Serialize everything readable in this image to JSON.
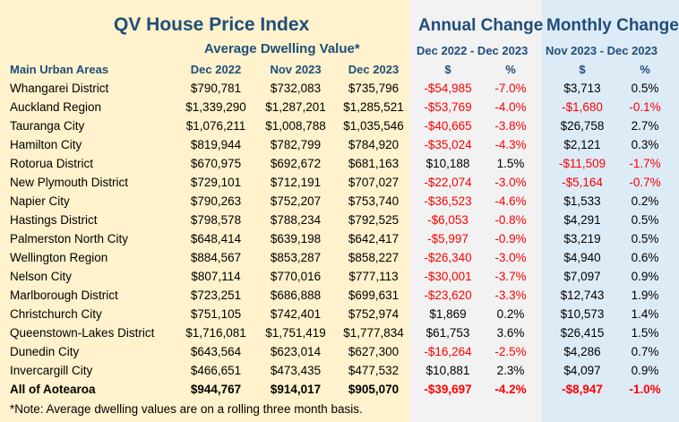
{
  "title": "QV House Price Index",
  "subtitle_values": "Average Dwelling Value*",
  "annual": {
    "title": "Annual Change",
    "period": "Dec 2022 - Dec 2023",
    "dollar_label": "$",
    "pct_label": "%"
  },
  "monthly": {
    "title": "Monthly Change",
    "period": "Nov 2023 - Dec 2023",
    "dollar_label": "$",
    "pct_label": "%"
  },
  "columns": {
    "area": "Main Urban Areas",
    "dec2022": "Dec 2022",
    "nov2023": "Nov 2023",
    "dec2023": "Dec 2023"
  },
  "colors": {
    "header": "#1f4e79",
    "negative": "#ff0000",
    "cream_bg": "#fff2cc",
    "grey_bg": "#f2f2f2",
    "blue_bg": "#ddebf7"
  },
  "rows": [
    {
      "area": "Whangarei District",
      "dec2022": "$790,781",
      "nov2023": "$732,083",
      "dec2023": "$735,796",
      "annual_dollar": "-$54,985",
      "annual_pct": "-7.0%",
      "monthly_dollar": "$3,713",
      "monthly_pct": "0.5%"
    },
    {
      "area": "Auckland Region",
      "dec2022": "$1,339,290",
      "nov2023": "$1,287,201",
      "dec2023": "$1,285,521",
      "annual_dollar": "-$53,769",
      "annual_pct": "-4.0%",
      "monthly_dollar": "-$1,680",
      "monthly_pct": "-0.1%"
    },
    {
      "area": "Tauranga City",
      "dec2022": "$1,076,211",
      "nov2023": "$1,008,788",
      "dec2023": "$1,035,546",
      "annual_dollar": "-$40,665",
      "annual_pct": "-3.8%",
      "monthly_dollar": "$26,758",
      "monthly_pct": "2.7%"
    },
    {
      "area": "Hamilton City",
      "dec2022": "$819,944",
      "nov2023": "$782,799",
      "dec2023": "$784,920",
      "annual_dollar": "-$35,024",
      "annual_pct": "-4.3%",
      "monthly_dollar": "$2,121",
      "monthly_pct": "0.3%"
    },
    {
      "area": "Rotorua District",
      "dec2022": "$670,975",
      "nov2023": "$692,672",
      "dec2023": "$681,163",
      "annual_dollar": "$10,188",
      "annual_pct": "1.5%",
      "monthly_dollar": "-$11,509",
      "monthly_pct": "-1.7%"
    },
    {
      "area": "New Plymouth District",
      "dec2022": "$729,101",
      "nov2023": "$712,191",
      "dec2023": "$707,027",
      "annual_dollar": "-$22,074",
      "annual_pct": "-3.0%",
      "monthly_dollar": "-$5,164",
      "monthly_pct": "-0.7%"
    },
    {
      "area": "Napier City",
      "dec2022": "$790,263",
      "nov2023": "$752,207",
      "dec2023": "$753,740",
      "annual_dollar": "-$36,523",
      "annual_pct": "-4.6%",
      "monthly_dollar": "$1,533",
      "monthly_pct": "0.2%"
    },
    {
      "area": "Hastings District",
      "dec2022": "$798,578",
      "nov2023": "$788,234",
      "dec2023": "$792,525",
      "annual_dollar": "-$6,053",
      "annual_pct": "-0.8%",
      "monthly_dollar": "$4,291",
      "monthly_pct": "0.5%"
    },
    {
      "area": "Palmerston North City",
      "dec2022": "$648,414",
      "nov2023": "$639,198",
      "dec2023": "$642,417",
      "annual_dollar": "-$5,997",
      "annual_pct": "-0.9%",
      "monthly_dollar": "$3,219",
      "monthly_pct": "0.5%"
    },
    {
      "area": "Wellington Region",
      "dec2022": "$884,567",
      "nov2023": "$853,287",
      "dec2023": "$858,227",
      "annual_dollar": "-$26,340",
      "annual_pct": "-3.0%",
      "monthly_dollar": "$4,940",
      "monthly_pct": "0.6%"
    },
    {
      "area": "Nelson City",
      "dec2022": "$807,114",
      "nov2023": "$770,016",
      "dec2023": "$777,113",
      "annual_dollar": "-$30,001",
      "annual_pct": "-3.7%",
      "monthly_dollar": "$7,097",
      "monthly_pct": "0.9%"
    },
    {
      "area": "Marlborough District",
      "dec2022": "$723,251",
      "nov2023": "$686,888",
      "dec2023": "$699,631",
      "annual_dollar": "-$23,620",
      "annual_pct": "-3.3%",
      "monthly_dollar": "$12,743",
      "monthly_pct": "1.9%"
    },
    {
      "area": "Christchurch City",
      "dec2022": "$751,105",
      "nov2023": "$742,401",
      "dec2023": "$752,974",
      "annual_dollar": "$1,869",
      "annual_pct": "0.2%",
      "monthly_dollar": "$10,573",
      "monthly_pct": "1.4%"
    },
    {
      "area": "Queenstown-Lakes District",
      "dec2022": "$1,716,081",
      "nov2023": "$1,751,419",
      "dec2023": "$1,777,834",
      "annual_dollar": "$61,753",
      "annual_pct": "3.6%",
      "monthly_dollar": "$26,415",
      "monthly_pct": "1.5%"
    },
    {
      "area": "Dunedin City",
      "dec2022": "$643,564",
      "nov2023": "$623,014",
      "dec2023": "$627,300",
      "annual_dollar": "-$16,264",
      "annual_pct": "-2.5%",
      "monthly_dollar": "$4,286",
      "monthly_pct": "0.7%"
    },
    {
      "area": "Invercargill City",
      "dec2022": "$466,651",
      "nov2023": "$473,435",
      "dec2023": "$477,532",
      "annual_dollar": "$10,881",
      "annual_pct": "2.3%",
      "monthly_dollar": "$4,097",
      "monthly_pct": "0.9%"
    }
  ],
  "total": {
    "area": "All of Aotearoa",
    "dec2022": "$944,767",
    "nov2023": "$914,017",
    "dec2023": "$905,070",
    "annual_dollar": "-$39,697",
    "annual_pct": "-4.2%",
    "monthly_dollar": "-$8,947",
    "monthly_pct": "-1.0%"
  },
  "note": "*Note: Average dwelling values are on a rolling three month basis."
}
